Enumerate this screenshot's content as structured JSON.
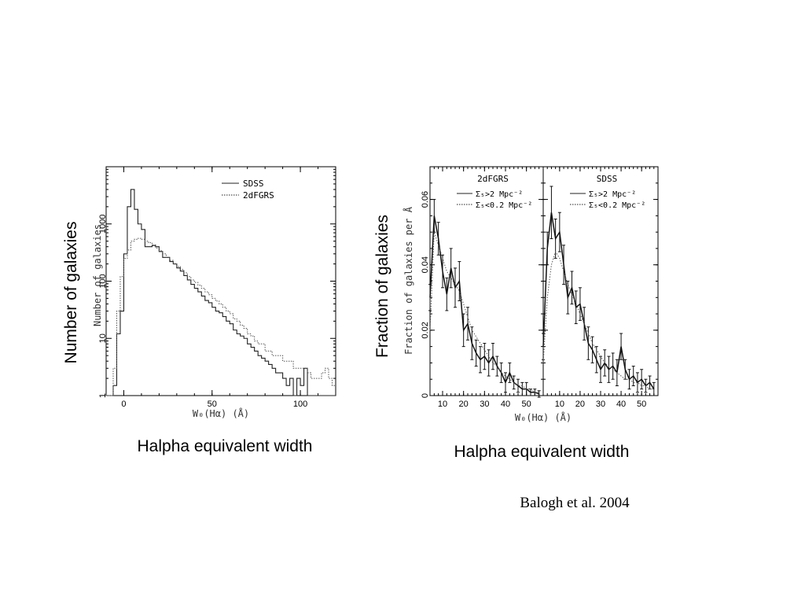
{
  "slide": {
    "left_ylabel": "Number of galaxies",
    "left_xlabel": "Halpha equivalent width",
    "right_ylabel": "Fraction of galaxies",
    "right_xlabel": "Halpha equivalent width",
    "citation": "Balogh et al. 2004"
  },
  "chart_data": [
    {
      "type": "histogram",
      "ylabel": "Number of galaxies",
      "xlabel": "W₀(Hα) (Å)",
      "yscale": "log",
      "xlim": [
        -10,
        120
      ],
      "ylim": [
        1,
        10000
      ],
      "xticks": [
        "0",
        "50",
        "100"
      ],
      "yticks": [
        "1",
        "10",
        "100",
        "1000"
      ],
      "legend": {
        "position": "top-right",
        "entries": [
          "SDSS",
          "2dFGRS"
        ]
      },
      "bin_width": 2,
      "bin_start": -10,
      "series": [
        {
          "name": "SDSS",
          "style": "solid",
          "values": [
            1,
            1,
            1.5,
            12,
            30,
            300,
            2000,
            4000,
            1800,
            1000,
            800,
            400,
            400,
            420,
            400,
            330,
            260,
            260,
            220,
            200,
            170,
            150,
            125,
            105,
            88,
            75,
            65,
            55,
            46,
            42,
            35,
            30,
            28,
            24,
            20,
            18,
            14,
            12,
            11,
            10,
            8,
            7,
            6,
            5,
            4.5,
            4,
            3.5,
            3,
            2.5,
            2.5,
            2,
            1.5,
            2,
            1,
            2,
            1.5,
            3,
            1,
            1,
            1,
            1,
            1,
            1,
            1,
            1
          ]
        },
        {
          "name": "2dFGRS",
          "style": "dotted",
          "values": [
            1,
            1,
            3,
            30,
            120,
            250,
            350,
            500,
            540,
            560,
            540,
            500,
            470,
            430,
            380,
            340,
            300,
            260,
            230,
            200,
            180,
            160,
            140,
            120,
            105,
            95,
            85,
            75,
            65,
            58,
            50,
            45,
            40,
            35,
            30,
            27,
            22,
            20,
            17,
            15,
            12,
            11,
            9,
            8,
            8,
            6,
            6,
            5,
            5,
            5,
            4,
            4,
            4,
            3,
            3,
            3,
            3,
            2.5,
            2,
            2,
            2,
            2.5,
            3,
            2,
            1.5
          ]
        }
      ]
    },
    {
      "type": "line",
      "panel_title": "2dFGRS",
      "ylabel": "Fraction of galaxies per Å",
      "xlabel": "W₀(Hα) (Å)",
      "xlim": [
        4,
        58
      ],
      "ylim": [
        0,
        0.07
      ],
      "xticks": [
        "10",
        "20",
        "30",
        "40",
        "50"
      ],
      "yticks": [
        "0",
        "0.02",
        "0.04",
        "0.06"
      ],
      "legend": {
        "position": "top-right",
        "entries": [
          "Σ₅>2 Mpc⁻²",
          "Σ₅<0.2 Mpc⁻²"
        ]
      },
      "series": [
        {
          "name": "Σ₅>2 Mpc⁻²",
          "style": "solid",
          "x": [
            4,
            6,
            8,
            10,
            12,
            14,
            16,
            18,
            20,
            22,
            24,
            26,
            28,
            30,
            32,
            34,
            36,
            38,
            40,
            42,
            44,
            46,
            48,
            50,
            52,
            54,
            56
          ],
          "y": [
            0.03,
            0.055,
            0.048,
            0.038,
            0.031,
            0.039,
            0.033,
            0.035,
            0.02,
            0.022,
            0.016,
            0.013,
            0.011,
            0.012,
            0.01,
            0.012,
            0.009,
            0.007,
            0.004,
            0.007,
            0.004,
            0.003,
            0.002,
            0.002,
            0.001,
            0.001,
            0.0005
          ],
          "err": [
            0.004,
            0.005,
            0.005,
            0.005,
            0.005,
            0.006,
            0.006,
            0.006,
            0.005,
            0.005,
            0.005,
            0.004,
            0.004,
            0.004,
            0.004,
            0.004,
            0.003,
            0.003,
            0.003,
            0.003,
            0.002,
            0.002,
            0.002,
            0.002,
            0.001,
            0.001,
            0.001
          ]
        },
        {
          "name": "Σ₅<0.2 Mpc⁻²",
          "style": "dotted",
          "x": [
            4,
            6,
            8,
            10,
            12,
            14,
            16,
            18,
            20,
            22,
            24,
            26,
            28,
            30,
            32,
            34,
            36,
            38,
            40,
            42,
            44,
            46,
            48,
            50,
            52,
            54,
            56
          ],
          "y": [
            0.02,
            0.05,
            0.046,
            0.042,
            0.038,
            0.036,
            0.034,
            0.032,
            0.028,
            0.024,
            0.02,
            0.018,
            0.016,
            0.014,
            0.012,
            0.01,
            0.009,
            0.007,
            0.006,
            0.005,
            0.004,
            0.003,
            0.003,
            0.002,
            0.002,
            0.001,
            0.001
          ]
        }
      ]
    },
    {
      "type": "line",
      "panel_title": "SDSS",
      "ylabel": "",
      "xlabel": "W₀(Hα) (Å)",
      "xlim": [
        2,
        58
      ],
      "ylim": [
        0,
        0.07
      ],
      "xticks": [
        "10",
        "20",
        "30",
        "40",
        "50"
      ],
      "yticks": [],
      "legend": {
        "position": "top-right",
        "entries": [
          "Σ₅>2 Mpc⁻²",
          "Σ₅<0.2 Mpc⁻²"
        ]
      },
      "series": [
        {
          "name": "Σ₅>2 Mpc⁻²",
          "style": "solid",
          "x": [
            2,
            4,
            6,
            8,
            10,
            12,
            14,
            16,
            18,
            20,
            22,
            24,
            26,
            28,
            30,
            32,
            34,
            36,
            38,
            40,
            42,
            44,
            46,
            48,
            50,
            52,
            54,
            56
          ],
          "y": [
            0.015,
            0.045,
            0.056,
            0.048,
            0.05,
            0.04,
            0.03,
            0.033,
            0.027,
            0.028,
            0.022,
            0.016,
            0.014,
            0.011,
            0.008,
            0.01,
            0.008,
            0.009,
            0.007,
            0.015,
            0.008,
            0.005,
            0.006,
            0.004,
            0.005,
            0.003,
            0.004,
            0.002
          ],
          "err": [
            0.004,
            0.005,
            0.008,
            0.006,
            0.006,
            0.006,
            0.005,
            0.005,
            0.005,
            0.005,
            0.005,
            0.005,
            0.004,
            0.004,
            0.004,
            0.004,
            0.004,
            0.004,
            0.004,
            0.004,
            0.003,
            0.003,
            0.003,
            0.003,
            0.003,
            0.002,
            0.002,
            0.002
          ]
        },
        {
          "name": "Σ₅<0.2 Mpc⁻²",
          "style": "dotted",
          "x": [
            2,
            4,
            6,
            8,
            10,
            12,
            14,
            16,
            18,
            20,
            22,
            24,
            26,
            28,
            30,
            32,
            34,
            36,
            38,
            40,
            42,
            44,
            46,
            48,
            50,
            52,
            54,
            56
          ],
          "y": [
            0.01,
            0.03,
            0.04,
            0.044,
            0.042,
            0.038,
            0.034,
            0.031,
            0.028,
            0.025,
            0.022,
            0.019,
            0.016,
            0.014,
            0.012,
            0.01,
            0.009,
            0.008,
            0.007,
            0.006,
            0.005,
            0.005,
            0.004,
            0.004,
            0.003,
            0.003,
            0.002,
            0.002
          ]
        }
      ]
    }
  ]
}
